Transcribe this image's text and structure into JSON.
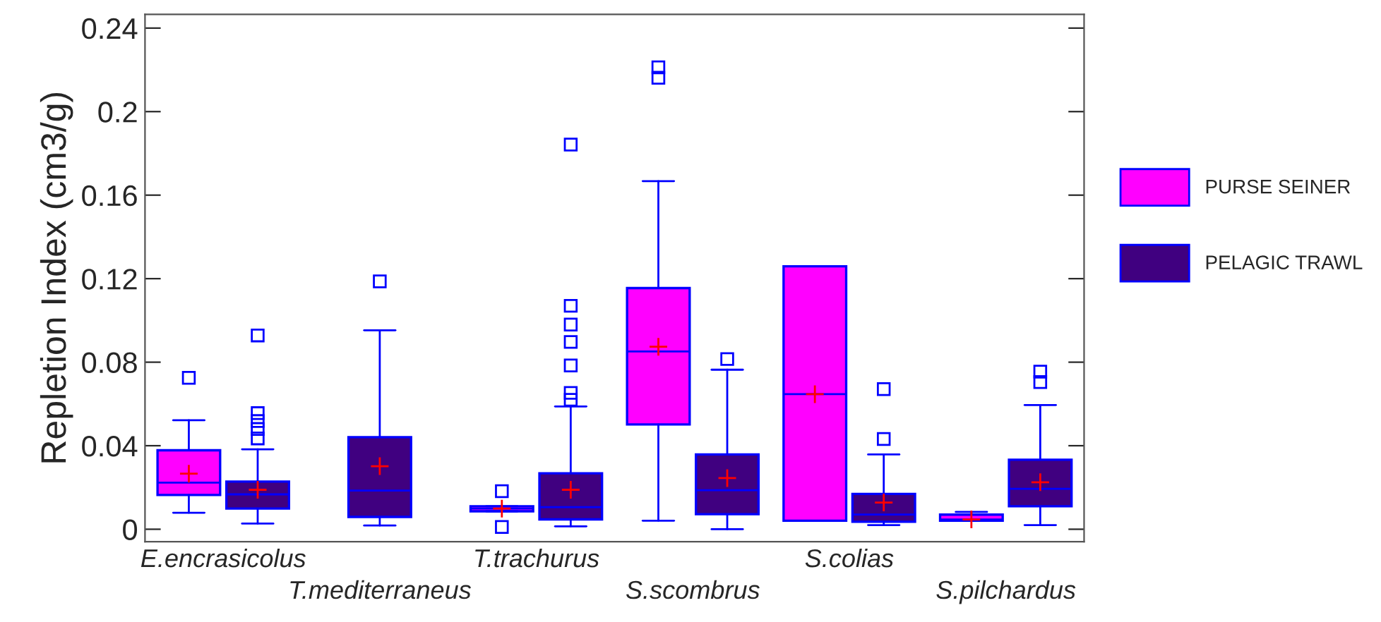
{
  "chart_data": {
    "type": "box",
    "ylabel": "Repletion Index (cm3/g)",
    "categories": [
      "E.encrasicolus",
      "T.mediterraneus",
      "T.trachurus",
      "S.scombrus",
      "S.colias",
      "S.pilchardus"
    ],
    "ylim": [
      -0.006,
      0.2466
    ],
    "yticks": [
      0,
      0.04,
      0.08,
      0.12,
      0.16,
      0.2,
      0.24
    ],
    "legend": "right",
    "grid": false,
    "series": [
      {
        "name": "PURSE SEINER",
        "color": "#ff00ff",
        "boxes": [
          {
            "low": 0.0079,
            "q1": 0.0164,
            "median": 0.0223,
            "q3": 0.0378,
            "high": 0.0522,
            "mean": 0.0266,
            "outliers": [
              0.0725
            ]
          },
          null,
          {
            "low": 0.0086,
            "q1": 0.0086,
            "median": 0.0099,
            "q3": 0.011,
            "high": 0.011,
            "mean": 0.0099,
            "outliers": [
              0.0182,
              0.0011
            ]
          },
          {
            "low": 0.0041,
            "q1": 0.0502,
            "median": 0.0851,
            "q3": 0.1155,
            "high": 0.1667,
            "mean": 0.0874,
            "outliers": [
              0.2212,
              0.2162
            ]
          },
          {
            "low": 0.0041,
            "q1": 0.0041,
            "median": 0.0647,
            "q3": 0.1259,
            "high": 0.1259,
            "mean": 0.0647
          },
          {
            "low": 0.0041,
            "q1": 0.0041,
            "median": 0.0047,
            "q3": 0.007,
            "high": 0.0083,
            "mean": 0.0047
          }
        ]
      },
      {
        "name": "PELAGIC TRAWL",
        "color": "#400080",
        "boxes": [
          {
            "low": 0.0027,
            "q1": 0.0099,
            "median": 0.0167,
            "q3": 0.0228,
            "high": 0.0383,
            "mean": 0.0189,
            "outliers": [
              0.0928,
              0.0556,
              0.0518,
              0.048,
              0.0435
            ]
          },
          {
            "low": 0.0018,
            "q1": 0.0059,
            "median": 0.0185,
            "q3": 0.0441,
            "high": 0.0953,
            "mean": 0.0302,
            "outliers": [
              0.1187
            ]
          },
          {
            "low": 0.0014,
            "q1": 0.0047,
            "median": 0.0106,
            "q3": 0.0268,
            "high": 0.0588,
            "mean": 0.0189,
            "outliers": [
              0.1842,
              0.107,
              0.098,
              0.0897,
              0.0784,
              0.0653,
              0.062
            ]
          },
          {
            "low": 0.0,
            "q1": 0.0072,
            "median": 0.0187,
            "q3": 0.0358,
            "high": 0.0764,
            "mean": 0.0245,
            "outliers": [
              0.0815
            ]
          },
          {
            "low": 0.002,
            "q1": 0.0036,
            "median": 0.007,
            "q3": 0.0169,
            "high": 0.0358,
            "mean": 0.0128,
            "outliers": [
              0.0671,
              0.0432
            ]
          },
          {
            "low": 0.002,
            "q1": 0.011,
            "median": 0.0194,
            "q3": 0.0333,
            "high": 0.0595,
            "mean": 0.0225,
            "outliers": [
              0.0755,
              0.0705
            ]
          }
        ]
      }
    ]
  }
}
